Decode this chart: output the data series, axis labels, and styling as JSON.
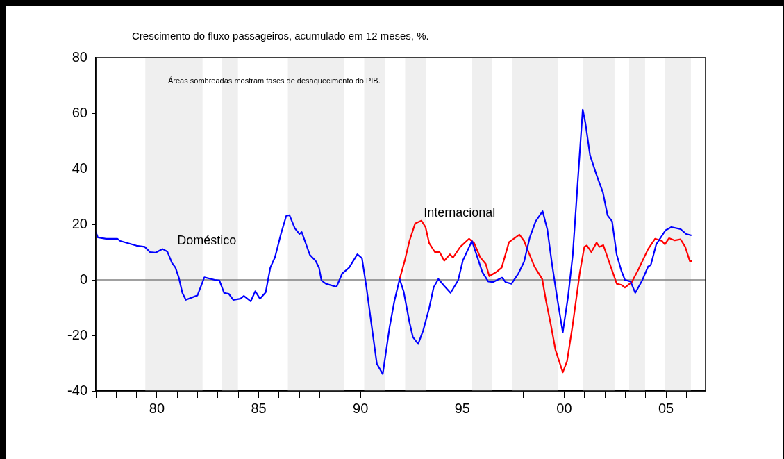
{
  "chart_data": {
    "type": "line",
    "title": "Crescimento do fluxo passageiros, acumulado em 12 meses, %.",
    "annotations": [
      "Áreas sombreadas mostram fases de desaquecimento do PIB."
    ],
    "xlim": [
      1977,
      2006.94
    ],
    "xticks": [
      {
        "value": 1977,
        "label": null
      },
      {
        "value": 1978,
        "label": null
      },
      {
        "value": 1979,
        "label": null
      },
      {
        "value": 1980,
        "label": "80"
      },
      {
        "value": 1981,
        "label": null
      },
      {
        "value": 1982,
        "label": null
      },
      {
        "value": 1983,
        "label": null
      },
      {
        "value": 1984,
        "label": null
      },
      {
        "value": 1985,
        "label": "85"
      },
      {
        "value": 1986,
        "label": null
      },
      {
        "value": 1987,
        "label": null
      },
      {
        "value": 1988,
        "label": null
      },
      {
        "value": 1989,
        "label": null
      },
      {
        "value": 1990,
        "label": "90"
      },
      {
        "value": 1991,
        "label": null
      },
      {
        "value": 1992,
        "label": null
      },
      {
        "value": 1993,
        "label": null
      },
      {
        "value": 1994,
        "label": null
      },
      {
        "value": 1995,
        "label": "95"
      },
      {
        "value": 1996,
        "label": null
      },
      {
        "value": 1997,
        "label": null
      },
      {
        "value": 1998,
        "label": null
      },
      {
        "value": 1999,
        "label": null
      },
      {
        "value": 2000,
        "label": "00"
      },
      {
        "value": 2001,
        "label": null
      },
      {
        "value": 2002,
        "label": null
      },
      {
        "value": 2003,
        "label": null
      },
      {
        "value": 2004,
        "label": null
      },
      {
        "value": 2005,
        "label": "05"
      },
      {
        "value": 2006,
        "label": null
      }
    ],
    "ylim": [
      -40,
      80
    ],
    "yticks": [
      -40,
      -20,
      0,
      20,
      40,
      60,
      80
    ],
    "grid": false,
    "legend": false,
    "marker": "none",
    "line_style": "solid",
    "ref_lines": [
      {
        "axis": "y",
        "value": 0,
        "color": "#808080"
      }
    ],
    "bands": [
      {
        "axis": "x",
        "from": 1979.43,
        "to": 1982.24,
        "color": "#efefef"
      },
      {
        "axis": "x",
        "from": 1983.18,
        "to": 1983.98,
        "color": "#efefef"
      },
      {
        "axis": "x",
        "from": 1986.43,
        "to": 1989.18,
        "color": "#efefef"
      },
      {
        "axis": "x",
        "from": 1990.18,
        "to": 1991.2,
        "color": "#efefef"
      },
      {
        "axis": "x",
        "from": 1992.19,
        "to": 1993.22,
        "color": "#efefef"
      },
      {
        "axis": "x",
        "from": 1995.45,
        "to": 1996.47,
        "color": "#efefef"
      },
      {
        "axis": "x",
        "from": 1997.43,
        "to": 1999.7,
        "color": "#efefef"
      },
      {
        "axis": "x",
        "from": 2000.93,
        "to": 2002.47,
        "color": "#efefef"
      },
      {
        "axis": "x",
        "from": 2003.19,
        "to": 2003.97,
        "color": "#efefef"
      },
      {
        "axis": "x",
        "from": 2004.93,
        "to": 2006.22,
        "color": "#efefef"
      }
    ],
    "series": [
      {
        "name": "Doméstico",
        "color": "#0000ff",
        "x": [
          1977.0,
          1977.1,
          1977.5,
          1978.06,
          1978.2,
          1979.0,
          1979.4,
          1979.66,
          1979.94,
          1980.28,
          1980.51,
          1980.74,
          1980.91,
          1981.08,
          1981.25,
          1981.42,
          1981.99,
          1982.33,
          1982.84,
          1983.07,
          1983.3,
          1983.53,
          1983.75,
          1984.1,
          1984.27,
          1984.61,
          1984.83,
          1985.06,
          1985.34,
          1985.57,
          1985.8,
          1986.09,
          1986.35,
          1986.51,
          1986.77,
          1987.0,
          1987.11,
          1987.51,
          1987.79,
          1987.96,
          1988.08,
          1988.3,
          1988.82,
          1989.1,
          1989.44,
          1989.84,
          1990.07,
          1990.29,
          1990.52,
          1990.8,
          1991.09,
          1991.43,
          1991.66,
          1991.92,
          1992.12,
          1992.4,
          1992.57,
          1992.83,
          1993.08,
          1993.37,
          1993.59,
          1993.82,
          1994.11,
          1994.42,
          1994.79,
          1995.02,
          1995.47,
          1995.98,
          1996.27,
          1996.5,
          1996.95,
          1997.12,
          1997.41,
          1997.75,
          1998.03,
          1998.31,
          1998.6,
          1998.94,
          1999.17,
          1999.4,
          1999.68,
          1999.93,
          2000.19,
          2000.42,
          2000.7,
          2000.91,
          2001.04,
          2001.27,
          2001.61,
          2001.9,
          2002.13,
          2002.35,
          2002.58,
          2002.81,
          2002.98,
          2003.26,
          2003.49,
          2003.83,
          2004.12,
          2004.25,
          2004.52,
          2004.97,
          2005.26,
          2005.71,
          2005.99,
          2006.25
        ],
        "values": [
          17.3,
          15.3,
          14.8,
          14.8,
          14.0,
          12.3,
          11.9,
          10.0,
          9.8,
          11.1,
          10.2,
          6.1,
          4.4,
          0.7,
          -4.7,
          -7.2,
          -5.6,
          0.9,
          0,
          -0.2,
          -4.7,
          -5,
          -7.2,
          -6.8,
          -5.8,
          -7.7,
          -4.1,
          -6.8,
          -4.5,
          4.4,
          8.2,
          16.5,
          23.0,
          23.3,
          18.6,
          16.5,
          17.2,
          9.0,
          6.9,
          4.4,
          -0.2,
          -1.4,
          -2.5,
          2.3,
          4.4,
          9.2,
          7.8,
          -2.7,
          -15.2,
          -30.2,
          -33.9,
          -16.8,
          -7.7,
          0.3,
          -4.3,
          -15.2,
          -20.6,
          -23.1,
          -18.1,
          -10.2,
          -2.7,
          0.3,
          -2.2,
          -4.7,
          -0.2,
          6.9,
          14.0,
          2.8,
          -0.6,
          -0.8,
          0.8,
          -0.8,
          -1.4,
          2.3,
          6.5,
          15.3,
          21.1,
          24.7,
          18.2,
          5.7,
          -7.7,
          -18.9,
          -6.0,
          9.0,
          39.0,
          61.3,
          56.5,
          44.8,
          37.3,
          31.5,
          23.2,
          21.1,
          9.0,
          3.2,
          0,
          -0.6,
          -4.7,
          -0.2,
          4.8,
          5.3,
          12.8,
          17.8,
          19.0,
          18.3,
          16.5,
          16.0
        ]
      },
      {
        "name": "Internacional",
        "color": "#ff0000",
        "x": [
          1991.92,
          1992.17,
          1992.4,
          1992.68,
          1992.99,
          1993.19,
          1993.37,
          1993.65,
          1993.88,
          1994.11,
          1994.39,
          1994.54,
          1994.9,
          1995.33,
          1995.58,
          1995.87,
          1996.15,
          1996.32,
          1996.66,
          1996.93,
          1997.29,
          1997.52,
          1997.8,
          1998.03,
          1998.26,
          1998.54,
          1998.92,
          1999.11,
          1999.34,
          1999.57,
          1999.93,
          2000.14,
          2000.42,
          2000.76,
          2000.99,
          2001.11,
          2001.33,
          2001.59,
          2001.73,
          2001.92,
          2002.24,
          2002.58,
          2002.81,
          2002.98,
          2003.32,
          2003.66,
          2004.12,
          2004.46,
          2004.8,
          2004.94,
          2005.15,
          2005.43,
          2005.71,
          2005.94,
          2006.17,
          2006.28
        ],
        "values": [
          0.3,
          6.9,
          14.0,
          20.3,
          21.3,
          19.0,
          13.2,
          10.0,
          10.0,
          6.9,
          9.2,
          8.0,
          11.9,
          14.8,
          13.2,
          8.2,
          5.7,
          1.3,
          2.8,
          4.4,
          13.6,
          14.8,
          16.3,
          14.0,
          9.8,
          4.8,
          0.3,
          -7.7,
          -16.0,
          -25.2,
          -33.3,
          -29.3,
          -16.0,
          2.3,
          11.9,
          12.4,
          10.0,
          13.4,
          11.9,
          12.5,
          5.7,
          -1.4,
          -1.8,
          -2.8,
          -0.8,
          4.0,
          11.1,
          14.8,
          14.0,
          12.8,
          15.0,
          14.2,
          14.6,
          11.9,
          6.7,
          6.7
        ]
      }
    ]
  }
}
